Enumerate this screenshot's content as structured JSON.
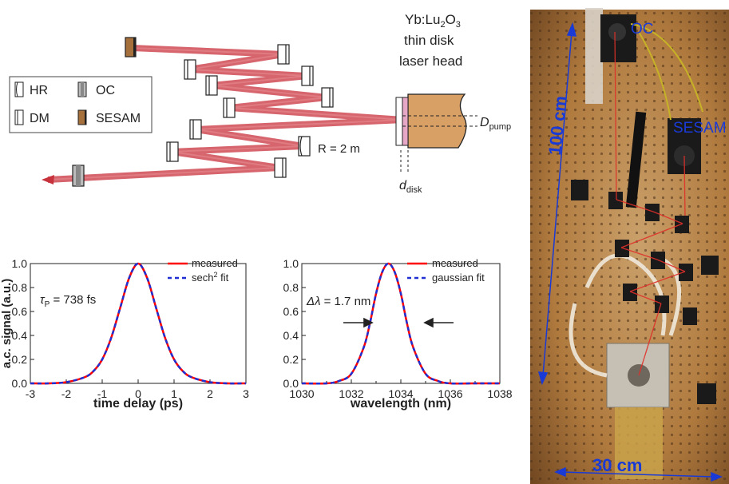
{
  "legend": {
    "items": [
      {
        "label": "HR",
        "type": "hr"
      },
      {
        "label": "DM",
        "type": "dm"
      },
      {
        "label": "OC",
        "type": "oc"
      },
      {
        "label": "SESAM",
        "type": "sesam"
      }
    ]
  },
  "laser_head": {
    "line1": "Yb:Lu",
    "sub2": "2",
    "line1b": "O",
    "sub3": "3",
    "line2": "thin disk",
    "line3": "laser head",
    "d_pump": "D",
    "d_pump_sub": "pump",
    "d_disk": "d",
    "d_disk_sub": "disk"
  },
  "mirror_label": "R = 2 m",
  "colors": {
    "beam": "#c8323c",
    "sesam": "#a5703c",
    "disk_pink": "#e7a8c8",
    "head_fill": "#d9a066",
    "measured": "#ff0000",
    "fit": "#1f2fd1",
    "photo_bg": "#b9874b",
    "photo_label": "#1a3ad6"
  },
  "photo": {
    "oc_label": "OC",
    "sesam_label": "SESAM",
    "length_label": "100 cm",
    "width_label": "30 cm"
  },
  "chart_data": [
    {
      "type": "line",
      "xlabel": "time delay (ps)",
      "ylabel": "a.c. signal (a.u.)",
      "xlim": [
        -3,
        3
      ],
      "ylim": [
        0.0,
        1.0
      ],
      "xticks": [
        "-3",
        "-2",
        "-1",
        "0",
        "1",
        "2",
        "3"
      ],
      "yticks": [
        "0.0",
        "0.2",
        "0.4",
        "0.6",
        "0.8",
        "1.0"
      ],
      "annotation_tau": "τ",
      "annotation_tau_sub": "P",
      "annotation_value": " = 738 fs",
      "series": [
        {
          "name": "measured",
          "style": "solid",
          "x": [
            -3,
            -2.5,
            -2,
            -1.5,
            -1.25,
            -1,
            -0.75,
            -0.5,
            -0.25,
            0,
            0.25,
            0.5,
            0.75,
            1,
            1.25,
            1.5,
            2,
            2.5,
            3
          ],
          "y": [
            0.0,
            0.0,
            0.01,
            0.05,
            0.1,
            0.2,
            0.38,
            0.63,
            0.88,
            1.0,
            0.88,
            0.63,
            0.38,
            0.2,
            0.1,
            0.05,
            0.01,
            0.0,
            0.0
          ]
        },
        {
          "name": "sech² fit",
          "style": "dashed",
          "x": [
            -3,
            -2.5,
            -2,
            -1.5,
            -1.25,
            -1,
            -0.75,
            -0.5,
            -0.25,
            0,
            0.25,
            0.5,
            0.75,
            1,
            1.25,
            1.5,
            2,
            2.5,
            3
          ],
          "y": [
            0.0,
            0.0,
            0.01,
            0.05,
            0.1,
            0.2,
            0.38,
            0.63,
            0.88,
            1.0,
            0.88,
            0.63,
            0.38,
            0.2,
            0.1,
            0.05,
            0.01,
            0.0,
            0.0
          ]
        }
      ]
    },
    {
      "type": "line",
      "xlabel": "wavelength (nm)",
      "ylabel": "",
      "xlim": [
        1030,
        1038
      ],
      "ylim": [
        0.0,
        1.0
      ],
      "xticks": [
        "1030",
        "1032",
        "1034",
        "1036",
        "1038"
      ],
      "yticks": [
        "0.0",
        "0.2",
        "0.4",
        "0.6",
        "0.8",
        "1.0"
      ],
      "annotation_tau": "Δλ",
      "annotation_tau_sub": "",
      "annotation_value": " = 1.7 nm",
      "series": [
        {
          "name": "measured",
          "style": "solid",
          "x": [
            1030,
            1031,
            1031.5,
            1032,
            1032.5,
            1032.75,
            1033,
            1033.25,
            1033.5,
            1033.75,
            1034,
            1034.25,
            1034.5,
            1035,
            1035.5,
            1036,
            1037,
            1038
          ],
          "y": [
            0.0,
            0.0,
            0.02,
            0.08,
            0.3,
            0.5,
            0.75,
            0.93,
            1.0,
            0.93,
            0.75,
            0.5,
            0.3,
            0.08,
            0.02,
            0.0,
            0.0,
            0.0
          ]
        },
        {
          "name": "gaussian fit",
          "style": "dashed",
          "x": [
            1030,
            1031,
            1031.5,
            1032,
            1032.5,
            1032.75,
            1033,
            1033.25,
            1033.5,
            1033.75,
            1034,
            1034.25,
            1034.5,
            1035,
            1035.5,
            1036,
            1037,
            1038
          ],
          "y": [
            0.0,
            0.0,
            0.02,
            0.08,
            0.3,
            0.5,
            0.75,
            0.93,
            1.0,
            0.93,
            0.75,
            0.5,
            0.3,
            0.08,
            0.02,
            0.0,
            0.0,
            0.0
          ]
        }
      ]
    }
  ]
}
